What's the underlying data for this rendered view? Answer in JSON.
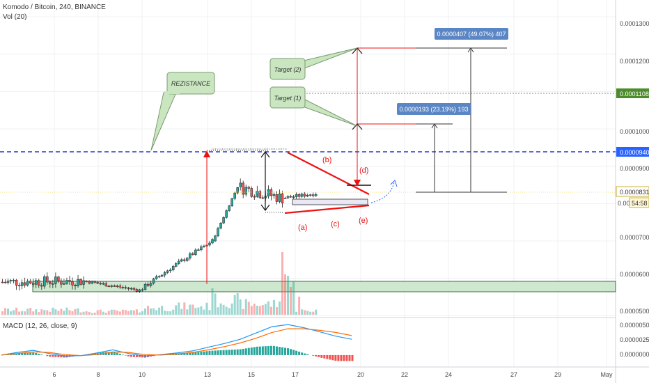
{
  "header": {
    "symbol_line": "Komodo / Bitcoin, 240, BINANCE",
    "volume_label": "Vol (20)",
    "macd_label": "MACD (12, 26, close, 9)"
  },
  "colors": {
    "up": "#26a69a",
    "down": "#ef5350",
    "bg": "#ffffff",
    "grid": "#eef0f3",
    "axis_text": "#4a4a4a",
    "zone_fill": "#c8e6c9",
    "zone_stroke": "#3f6b45",
    "resistance": "#1e3bcc",
    "annotation_red": "#ee1111",
    "callout_fill": "#c9e6c0",
    "callout_stroke": "#7a9a70",
    "label_blue": "#5b86c5",
    "price_tag": "#2962ff",
    "target_tag": "#4c8c2c",
    "macd_line": "#2196f3",
    "signal_line": "#ff6d00"
  },
  "price_axis": {
    "ticks": [
      "0.0001300",
      "0.0001200",
      "0.0001100",
      "0.0001000",
      "0.0000900",
      "0.0000800",
      "0.0000700",
      "0.0000600",
      "0.0000500"
    ],
    "target_tag": "0.0001108",
    "resistance_tag": "0.0000940",
    "last_tag": "0.0000831",
    "countdown": "54:58",
    "partial_tag": "0.00"
  },
  "macd_axis": {
    "ticks": [
      "0.0000050",
      "0.0000025",
      "0.0000000"
    ]
  },
  "time_axis": {
    "labels": [
      "6",
      "8",
      "10",
      "13",
      "15",
      "17",
      "20",
      "22",
      "24",
      "27",
      "29",
      "May"
    ]
  },
  "annotations": {
    "rezistance": "REZISTANCE",
    "target1": "Target (1)",
    "target2": "Target (2)",
    "measure1": "0.0000193 (23.19%) 193",
    "measure2": "0.0000407 (49.07%) 407",
    "wave_a": "(a)",
    "wave_b": "(b)",
    "wave_c": "(c)",
    "wave_d": "(d)",
    "wave_e": "(e)"
  },
  "chart_data": {
    "type": "candlestick",
    "title": "Komodo / Bitcoin, 240, BINANCE",
    "price_range": [
      4.95e-05,
      0.0001345
    ],
    "levels": {
      "resistance": 9.4e-05,
      "target_1": 0.0001108,
      "target_2": 0.0001238,
      "target_1_top": 0.0001023,
      "triangle_top": 9.38e-05,
      "triangle_bottom_left": 7.73e-05,
      "support_zone": [
        5.52e-05,
        5.78e-05
      ],
      "last_price": 8.31e-05
    },
    "measures": [
      {
        "label": "0.0000193 (23.19%) 193",
        "from": 8.3e-05,
        "to": 0.0001023
      },
      {
        "label": "0.0000407 (49.07%) 407",
        "from": 8.3e-05,
        "to": 0.0001237
      }
    ],
    "candle_groups": [
      {
        "count": 30,
        "start": 5.9e-05,
        "end": 5.93e-05,
        "amp": 2.8e-06,
        "volume": 8
      },
      {
        "count": 20,
        "start": 5.93e-05,
        "end": 5.68e-05,
        "amp": 9e-07,
        "volume": 6
      },
      {
        "count": 12,
        "start": 5.68e-05,
        "end": 6.32e-05,
        "amp": 1.2e-06,
        "volume": 12
      },
      {
        "count": 14,
        "start": 6.32e-05,
        "end": 7e-05,
        "amp": 1.1e-06,
        "volume": 14
      },
      {
        "count": 9,
        "start": 7e-05,
        "end": 8.45e-05,
        "amp": 6e-07,
        "volume": 24
      },
      {
        "count": 16,
        "start": 8.45e-05,
        "end": 8.15e-05,
        "amp": 3.4e-06,
        "volume": 18
      },
      {
        "count": 12,
        "start": 8.15e-05,
        "end": 8.27e-05,
        "amp": 1e-06,
        "volume": 7
      }
    ],
    "macd": {
      "range": [
        -1.2e-06,
        6.6e-06
      ],
      "macd_line": [
        0,
        0.5,
        0.9,
        0.3,
        -0.2,
        -0.1,
        0.4,
        1.0,
        0.3,
        -0.2,
        0.1,
        0.4,
        0.8,
        1.5,
        2.2,
        3.0,
        4.2,
        5.4,
        5.8,
        5.2,
        4.4,
        3.6,
        3.0
      ],
      "signal_line": [
        0,
        0.3,
        0.6,
        0.5,
        0.1,
        -0.1,
        0.1,
        0.6,
        0.5,
        0.1,
        0.0,
        0.2,
        0.5,
        1.0,
        1.6,
        2.3,
        3.2,
        4.3,
        5.0,
        5.0,
        4.7,
        4.3,
        3.7
      ]
    }
  }
}
